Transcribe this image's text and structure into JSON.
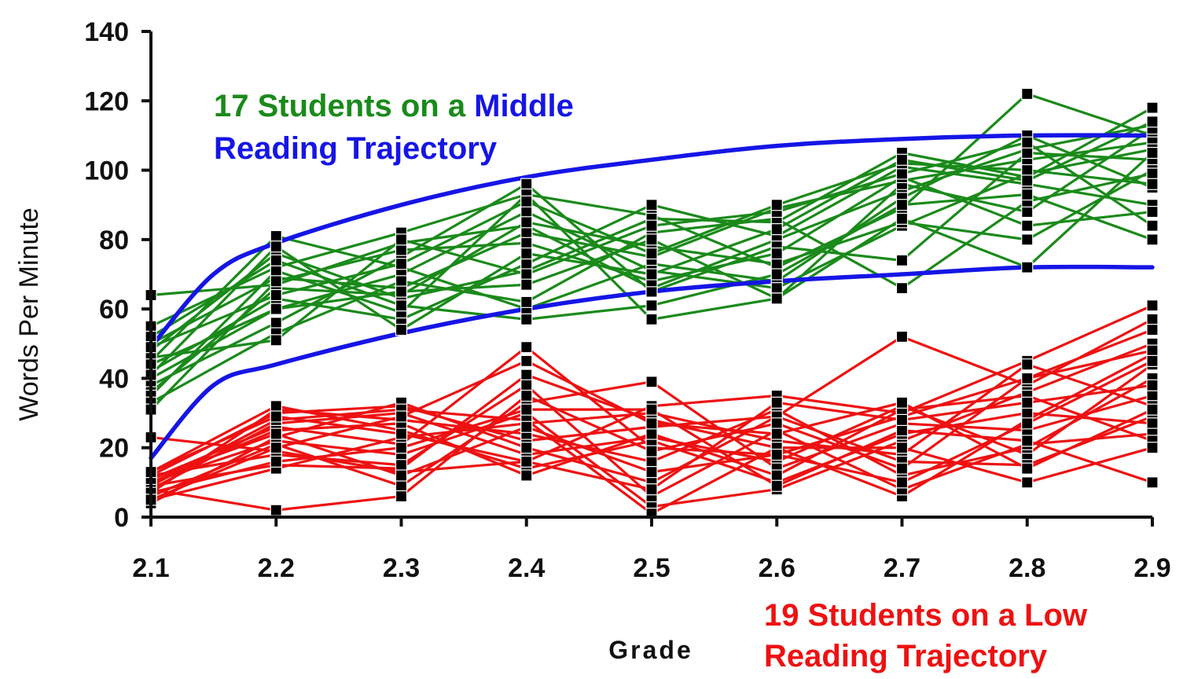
{
  "chart_data": {
    "type": "line",
    "title": "",
    "xlabel": "Grade",
    "ylabel": "Words Per Minute",
    "x": [
      "2.1",
      "2.2",
      "2.3",
      "2.4",
      "2.5",
      "2.6",
      "2.7",
      "2.8",
      "2.9"
    ],
    "xlim": [
      2.1,
      2.9
    ],
    "ylim": [
      0,
      140
    ],
    "yticks": [
      0,
      20,
      40,
      60,
      80,
      100,
      120,
      140
    ],
    "grid": false,
    "annotations": [
      {
        "lines": [
          [
            {
              "text": "17 Students on a ",
              "color": "#1a8a1a"
            },
            {
              "text": "Middle",
              "color": "#1515e6"
            }
          ],
          [
            {
              "text": "Reading Trajectory",
              "color": "#1515e6"
            }
          ]
        ]
      },
      {
        "lines": [
          [
            {
              "text": "19 Students on a Low",
              "color": "#ee1111"
            }
          ],
          [
            {
              "text": "Reading Trajectory",
              "color": "#ee1111"
            }
          ]
        ]
      }
    ],
    "colors": {
      "middle": "#1a8a1a",
      "low": "#ee1111",
      "boundary": "#1515e6",
      "marker": "#000000"
    },
    "boundary_curves": [
      {
        "x": [
          2.1,
          2.15,
          2.2,
          2.3,
          2.4,
          2.5,
          2.6,
          2.7,
          2.8,
          2.9
        ],
        "y": [
          49,
          70,
          79,
          90,
          98,
          103,
          107,
          109,
          110,
          110
        ]
      },
      {
        "x": [
          2.1,
          2.15,
          2.2,
          2.3,
          2.4,
          2.5,
          2.6,
          2.7,
          2.8,
          2.9
        ],
        "y": [
          17,
          38,
          44,
          53,
          60,
          65,
          68,
          70,
          72,
          72
        ]
      }
    ],
    "series_groups": [
      {
        "group": "middle",
        "series": [
          {
            "values": [
              64,
              67,
              79,
              84,
              66,
              80,
              94,
              106,
              113
            ]
          },
          {
            "values": [
              55,
              72,
              82,
              93,
              87,
              72,
              89,
              122,
              110
            ]
          },
          {
            "values": [
              50,
              69,
              66,
              82,
              75,
              89,
              97,
              103,
              108
            ]
          },
          {
            "values": [
              48,
              76,
              63,
              71,
              86,
              85,
              105,
              98,
              118
            ]
          },
          {
            "values": [
              45,
              81,
              72,
              60,
              73,
              68,
              92,
              110,
              95
            ]
          },
          {
            "values": [
              42,
              63,
              57,
              73,
              90,
              81,
              101,
              96,
              90
            ]
          },
          {
            "values": [
              40,
              60,
              70,
              88,
              71,
              66,
              84,
              99,
              106
            ]
          },
          {
            "values": [
              38,
              56,
              75,
              96,
              65,
              78,
              74,
              105,
              103
            ]
          },
          {
            "values": [
              36,
              66,
              64,
              85,
              78,
              73,
              85,
              80,
              100
            ]
          },
          {
            "values": [
              35,
              71,
              59,
              93,
              57,
              63,
              96,
              88,
              112
            ]
          },
          {
            "values": [
              33,
              53,
              68,
              62,
              82,
              86,
              66,
              91,
              99
            ]
          },
          {
            "values": [
              31,
              68,
              77,
              79,
              68,
              76,
              98,
              84,
              88
            ]
          },
          {
            "values": [
              46,
              51,
              80,
              70,
              84,
              88,
              99,
              108,
              84
            ]
          },
          {
            "values": [
              52,
              74,
              61,
              57,
              61,
              70,
              90,
              93,
              80
            ]
          },
          {
            "values": [
              49,
              64,
              73,
              91,
              76,
              90,
              102,
              100,
              96
            ]
          },
          {
            "values": [
              44,
              60,
              65,
              67,
              80,
              63,
              86,
              72,
              105
            ]
          },
          {
            "values": [
              41,
              78,
              54,
              76,
              70,
              83,
              103,
              97,
              114
            ]
          }
        ]
      },
      {
        "group": "low",
        "series": [
          {
            "values": [
              23,
              19,
              13,
              16,
              32,
              35,
              30,
              45,
              61
            ]
          },
          {
            "values": [
              12,
              30,
              32,
              22,
              26,
              29,
              52,
              38,
              57
            ]
          },
          {
            "values": [
              11,
              26,
              21,
              49,
              20,
              18,
              29,
              40,
              54
            ]
          },
          {
            "values": [
              10,
              22,
              18,
              30,
              3,
              8,
              22,
              36,
              50
            ]
          },
          {
            "values": [
              9,
              15,
              14,
              41,
              28,
              20,
              6,
              28,
              47
            ]
          },
          {
            "values": [
              8,
              27,
              30,
              18,
              23,
              16,
              32,
              18,
              44
            ]
          },
          {
            "values": [
              7,
              31,
              28,
              24,
              16,
              31,
              12,
              20,
              40
            ]
          },
          {
            "values": [
              6,
              21,
              9,
              33,
              39,
              14,
              27,
              25,
              35
            ]
          },
          {
            "values": [
              5,
              14,
              23,
              27,
              30,
              22,
              18,
              44,
              32
            ]
          },
          {
            "values": [
              4,
              23,
              33,
              20,
              10,
              29,
              16,
              15,
              29
            ]
          },
          {
            "values": [
              13,
              32,
              25,
              14,
              22,
              10,
              24,
              30,
              27
            ]
          },
          {
            "values": [
              12,
              18,
              15,
              38,
              6,
              25,
              8,
              21,
              24
            ]
          },
          {
            "values": [
              10,
              25,
              27,
              12,
              24,
              12,
              31,
              35,
              22
            ]
          },
          {
            "values": [
              9,
              28,
              31,
              28,
              1,
              20,
              20,
              10,
              20
            ]
          },
          {
            "values": [
              8,
              2,
              6,
              35,
              19,
              27,
              14,
              40,
              48
            ]
          },
          {
            "values": [
              7,
              16,
              20,
              31,
              31,
              9,
              25,
              22,
              10
            ]
          },
          {
            "values": [
              11,
              24,
              12,
              26,
              13,
              18,
              10,
              27,
              45
            ]
          },
          {
            "values": [
              5,
              20,
              29,
              45,
              27,
              24,
              33,
              14,
              31
            ]
          },
          {
            "values": [
              13,
              29,
              24,
              16,
              8,
              33,
              28,
              33,
              38
            ]
          }
        ]
      }
    ]
  }
}
